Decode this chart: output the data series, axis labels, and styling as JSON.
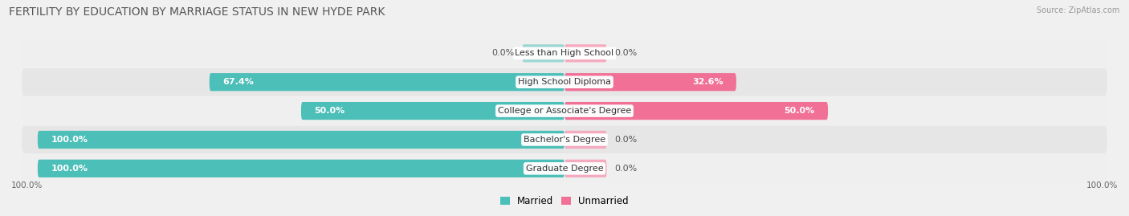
{
  "title": "FERTILITY BY EDUCATION BY MARRIAGE STATUS IN NEW HYDE PARK",
  "source": "Source: ZipAtlas.com",
  "categories": [
    "Less than High School",
    "High School Diploma",
    "College or Associate's Degree",
    "Bachelor's Degree",
    "Graduate Degree"
  ],
  "married": [
    0.0,
    67.4,
    50.0,
    100.0,
    100.0
  ],
  "unmarried": [
    0.0,
    32.6,
    50.0,
    0.0,
    0.0
  ],
  "married_color": "#4CBFB8",
  "unmarried_color": "#F07096",
  "unmarried_stub_color": "#F5AABF",
  "row_bg_colors": [
    "#EFEFEF",
    "#E6E6E6",
    "#EFEFEF",
    "#E6E6E6",
    "#EFEFEF"
  ],
  "fig_bg_color": "#F0F0F0",
  "title_fontsize": 10,
  "label_fontsize": 8,
  "tick_fontsize": 7.5,
  "figsize": [
    14.06,
    2.69
  ],
  "dpi": 100,
  "xlim": [
    -105,
    105
  ],
  "stub_size": 8.0
}
